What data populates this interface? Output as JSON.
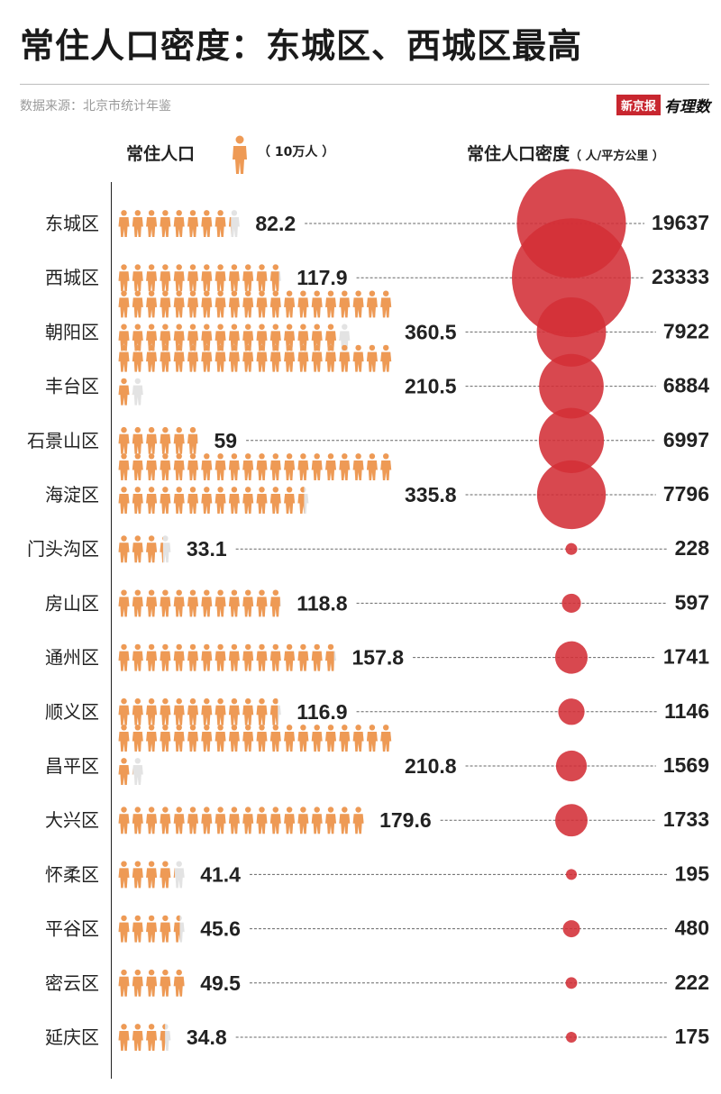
{
  "title": "常住人口密度：东城区、西城区最高",
  "source": "数据来源：北京市统计年鉴",
  "logo": {
    "brand": "新京报",
    "sub": "有理数"
  },
  "legend": {
    "population_label": "常住人口",
    "population_unit": "（ 10万人 ）",
    "density_label": "常住人口密度",
    "density_unit": "（ 人/平方公里 ）"
  },
  "colors": {
    "person": "#ee9a55",
    "person_empty": "#e3e3e3",
    "bubble": "#d32f37",
    "dash": "#666666",
    "axis": "#222222"
  },
  "chart_data": {
    "type": "bubble-pictogram",
    "title": "常住人口密度：东城区、西城区最高",
    "icon_unit": 10,
    "series": [
      {
        "name": "常住人口",
        "unit": "10万人"
      },
      {
        "name": "常住人口密度",
        "unit": "人/平方公里"
      }
    ],
    "categories": [
      "东城区",
      "西城区",
      "朝阳区",
      "丰台区",
      "石景山区",
      "海淀区",
      "门头沟区",
      "房山区",
      "通州区",
      "顺义区",
      "昌平区",
      "大兴区",
      "怀柔区",
      "平谷区",
      "密云区",
      "延庆区"
    ],
    "population": [
      82.2,
      117.9,
      360.5,
      210.5,
      59,
      335.8,
      33.1,
      118.8,
      157.8,
      116.9,
      210.8,
      179.6,
      41.4,
      45.6,
      49.5,
      34.8
    ],
    "population_labels": [
      "82.2",
      "117.9",
      "360.5",
      "210.5",
      "59",
      "335.8",
      "33.1",
      "118.8",
      "157.8",
      "116.9",
      "210.8",
      "179.6",
      "41.4",
      "45.6",
      "49.5",
      "34.8"
    ],
    "density": [
      19637,
      23333,
      7922,
      6884,
      6997,
      7796,
      228,
      597,
      1741,
      1146,
      1569,
      1733,
      195,
      480,
      222,
      175
    ],
    "density_labels": [
      "19637",
      "23333",
      "7922",
      "6884",
      "6997",
      "7796",
      "228",
      "597",
      "1741",
      "1146",
      "1569",
      "1733",
      "195",
      "480",
      "222",
      "175"
    ]
  }
}
